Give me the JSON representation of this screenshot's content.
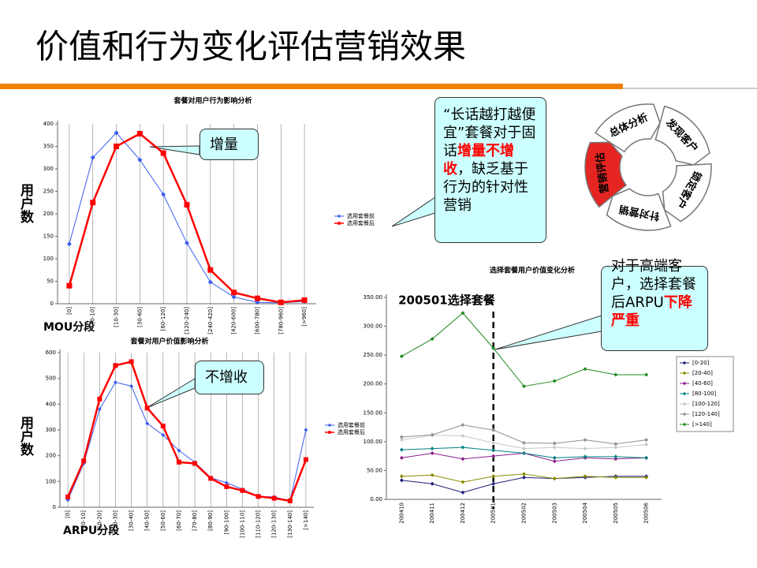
{
  "title": "价值和行为变化评估营销效果",
  "chart_data": [
    {
      "type": "line",
      "title": "套餐对用户行为影响分析",
      "y_label": "用户数",
      "x_label": "MOU分段",
      "categories": [
        "[0]",
        "[0-10]",
        "[10-30]",
        "[30-60]",
        "[60-120]",
        "[120-240]",
        "[240-420]",
        "[420-600]",
        "[600-780]",
        "[780-960]",
        "[>960]"
      ],
      "series": [
        {
          "name": "选用套餐前",
          "color": "#3a5cf0",
          "marker": "diamond",
          "width": 1,
          "values": [
            133,
            325,
            380,
            320,
            243,
            135,
            48,
            15,
            3,
            2,
            5
          ]
        },
        {
          "name": "选用套餐后",
          "color": "#ff0000",
          "marker": "square",
          "width": 2.5,
          "values": [
            40,
            225,
            350,
            378,
            335,
            220,
            75,
            25,
            12,
            3,
            8
          ]
        }
      ],
      "ylim": [
        0,
        400
      ],
      "yticks": [
        0,
        50,
        100,
        150,
        200,
        250,
        300,
        350,
        400
      ],
      "grid": true,
      "legend": "right"
    },
    {
      "type": "line",
      "title": "套餐对用户价值影响分析",
      "y_label": "用户数",
      "x_label": "ARPU分段",
      "categories": [
        "[0]",
        "[0-10]",
        "[10-20]",
        "[20-30]",
        "[30-40]",
        "[40-50]",
        "[50-60]",
        "[60-70]",
        "[70-80]",
        "[80-90]",
        "[90-100]",
        "[100-110]",
        "[110-120]",
        "[120-130]",
        "[130-140]",
        "[>140]"
      ],
      "series": [
        {
          "name": "选用套餐前",
          "color": "#3a5cf0",
          "marker": "diamond",
          "width": 1,
          "values": [
            28,
            170,
            380,
            485,
            470,
            325,
            280,
            220,
            175,
            115,
            95,
            70,
            42,
            40,
            25,
            300
          ]
        },
        {
          "name": "选用套餐后",
          "color": "#ff0000",
          "marker": "square",
          "width": 2.5,
          "values": [
            40,
            180,
            420,
            550,
            565,
            385,
            315,
            175,
            170,
            112,
            80,
            65,
            42,
            35,
            25,
            185
          ]
        }
      ],
      "ylim": [
        0,
        600
      ],
      "yticks": [
        0,
        100,
        200,
        300,
        400,
        500,
        600
      ],
      "grid": true,
      "legend": "right"
    },
    {
      "type": "line",
      "title": "选择套餐用户价值变化分析",
      "categories": [
        "200410",
        "200411",
        "200412",
        "200501",
        "200502",
        "200503",
        "200504",
        "200505",
        "200506"
      ],
      "series": [
        {
          "name": "[0-20]",
          "color": "#1f1f7a",
          "marker": "diamond",
          "width": 1,
          "values": [
            33,
            27,
            12,
            27,
            38,
            36,
            38,
            40,
            40
          ]
        },
        {
          "name": "[20-40]",
          "color": "#8b8b00",
          "marker": "diamond",
          "width": 1,
          "values": [
            40,
            42,
            30,
            40,
            44,
            36,
            40,
            38,
            38
          ]
        },
        {
          "name": "[40-60]",
          "color": "#8b1f8b",
          "marker": "diamond",
          "width": 1,
          "values": [
            72,
            80,
            70,
            75,
            80,
            66,
            72,
            70,
            72
          ]
        },
        {
          "name": "[80-100]",
          "color": "#008080",
          "marker": "diamond",
          "width": 1,
          "values": [
            86,
            88,
            90,
            85,
            80,
            72,
            74,
            74,
            72
          ]
        },
        {
          "name": "[100-120]",
          "color": "#c8c8c8",
          "marker": "diamond",
          "width": 1,
          "values": [
            103,
            111,
            110,
            98,
            88,
            90,
            88,
            90,
            95
          ]
        },
        {
          "name": "[120-140]",
          "color": "#909090",
          "marker": "diamond",
          "width": 1,
          "values": [
            108,
            112,
            129,
            120,
            98,
            97,
            103,
            96,
            103
          ]
        },
        {
          "name": "[>140]",
          "color": "#1e8b1e",
          "marker": "diamond",
          "width": 1,
          "values": [
            248,
            278,
            323,
            262,
            196,
            205,
            226,
            216,
            216
          ]
        }
      ],
      "ylim": [
        0,
        350
      ],
      "yticks": [
        {
          "value": 0,
          "label": "0.00"
        },
        {
          "value": 50,
          "label": "50.00"
        },
        {
          "value": 100,
          "label": "100.00"
        },
        {
          "value": 150,
          "label": "150.00"
        },
        {
          "value": 200,
          "label": "200.00"
        },
        {
          "value": 250,
          "label": "250.00"
        },
        {
          "value": 300,
          "label": "300.00"
        },
        {
          "value": 350,
          "label": "350.00"
        }
      ],
      "grid": false,
      "legend": "right",
      "annotation": {
        "text": "200501选择套餐",
        "x": "200501"
      }
    }
  ],
  "callouts": [
    {
      "segments": [
        {
          "text": "增量"
        }
      ]
    },
    {
      "segments": [
        {
          "text": "不增收"
        }
      ]
    },
    {
      "segments": [
        {
          "text": "“长话越打越便宜”套餐对于固话"
        },
        {
          "text": "增量不增收",
          "color": "#ff0000"
        },
        {
          "text": "，缺乏基于行为的针对性营销"
        }
      ]
    },
    {
      "segments": [
        {
          "text": "对于高端客户，选择套餐后ARPU"
        },
        {
          "text": "下降严重",
          "color": "#ff0000"
        }
      ]
    }
  ],
  "cycle": {
    "steps": [
      {
        "label": "总体分析"
      },
      {
        "label": "发现客户"
      },
      {
        "label": "锁定客户"
      },
      {
        "label": "针对营销"
      },
      {
        "label": "营销评估",
        "color": "#e52521"
      }
    ]
  }
}
